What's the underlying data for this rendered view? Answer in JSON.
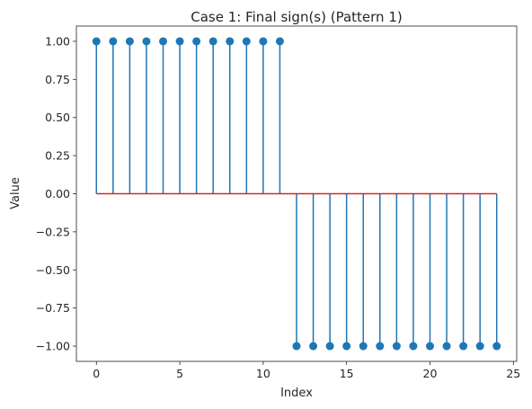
{
  "chart_data": {
    "type": "stem",
    "title": "Case 1: Final sign(s) (Pattern 1)",
    "xlabel": "Index",
    "ylabel": "Value",
    "xlim": [
      -1.2,
      25.2
    ],
    "ylim": [
      -1.1,
      1.1
    ],
    "xticks": [
      0,
      5,
      10,
      15,
      20,
      25
    ],
    "xtick_labels": [
      "0",
      "5",
      "10",
      "15",
      "20",
      "25"
    ],
    "yticks": [
      -1.0,
      -0.75,
      -0.5,
      -0.25,
      0.0,
      0.25,
      0.5,
      0.75,
      1.0
    ],
    "ytick_labels": [
      "−1.00",
      "−0.75",
      "−0.50",
      "−0.25",
      "0.00",
      "0.25",
      "0.50",
      "0.75",
      "1.00"
    ],
    "baseline": 0,
    "grid": false,
    "colors": {
      "stem": "#1f77b4",
      "marker": "#1f77b4",
      "baseline": "#d62728"
    },
    "x": [
      0,
      1,
      2,
      3,
      4,
      5,
      6,
      7,
      8,
      9,
      10,
      11,
      12,
      13,
      14,
      15,
      16,
      17,
      18,
      19,
      20,
      21,
      22,
      23,
      24
    ],
    "y": [
      1,
      1,
      1,
      1,
      1,
      1,
      1,
      1,
      1,
      1,
      1,
      1,
      -1,
      -1,
      -1,
      -1,
      -1,
      -1,
      -1,
      -1,
      -1,
      -1,
      -1,
      -1,
      -1
    ]
  }
}
